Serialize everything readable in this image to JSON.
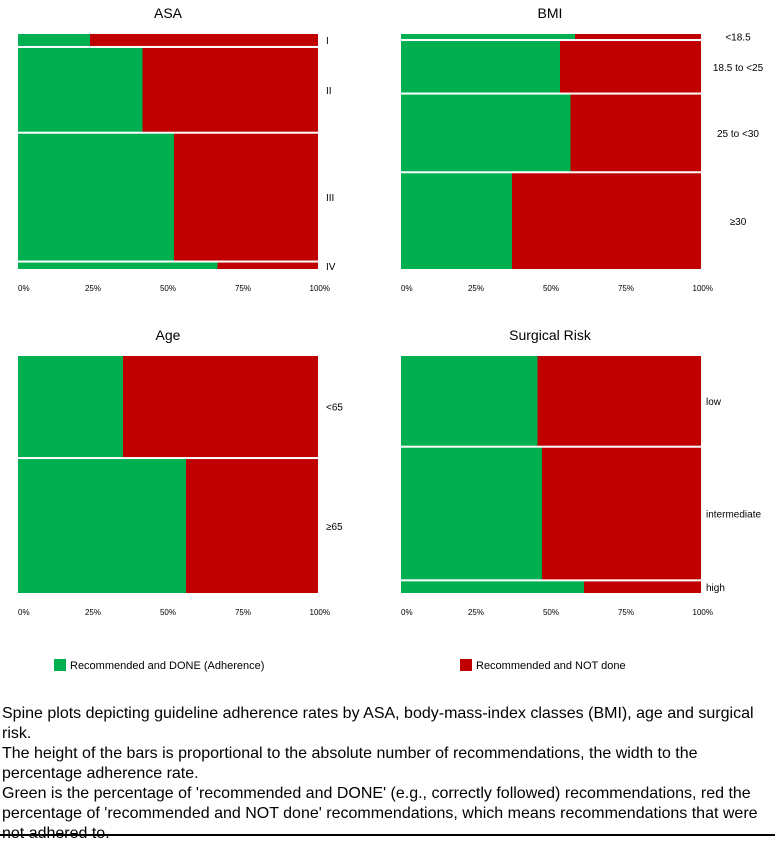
{
  "colors": {
    "done": "#00b050",
    "not_done": "#c00000",
    "separator": "#ffffff"
  },
  "ticks": [
    "0%",
    "25%",
    "50%",
    "75%",
    "100%"
  ],
  "chart_data": [
    {
      "type": "bar",
      "title": "ASA",
      "categories": [
        "I",
        "II",
        "III",
        "IV"
      ],
      "relative_counts": [
        0.05,
        0.35,
        0.53,
        0.027
      ],
      "series": [
        {
          "name": "Recommended and DONE (Adherence)",
          "values": [
            24,
            41.5,
            52,
            66.5
          ]
        },
        {
          "name": "Recommended and NOT done",
          "values": [
            76,
            58.5,
            48,
            33.5
          ]
        }
      ],
      "xlim": [
        0,
        100
      ]
    },
    {
      "type": "bar",
      "title": "BMI",
      "categories": [
        "<18.5",
        "18.5 to <25",
        "25 to <30",
        "≥30"
      ],
      "relative_counts": [
        0.022,
        0.225,
        0.335,
        0.418
      ],
      "series": [
        {
          "name": "Recommended and DONE (Adherence)",
          "values": [
            58,
            53,
            56.5,
            37
          ]
        },
        {
          "name": "Recommended and NOT done",
          "values": [
            42,
            47,
            43.5,
            63
          ]
        }
      ],
      "xlim": [
        0,
        100
      ]
    },
    {
      "type": "bar",
      "title": "Age",
      "categories": [
        "<65",
        "≥65"
      ],
      "relative_counts": [
        0.43,
        0.57
      ],
      "series": [
        {
          "name": "Recommended and DONE (Adherence)",
          "values": [
            35,
            56
          ]
        },
        {
          "name": "Recommended and NOT done",
          "values": [
            65,
            44
          ]
        }
      ],
      "xlim": [
        0,
        100
      ]
    },
    {
      "type": "bar",
      "title": "Surgical Risk",
      "categories": [
        "low",
        "intermediate",
        "high"
      ],
      "relative_counts": [
        0.385,
        0.565,
        0.05
      ],
      "series": [
        {
          "name": "Recommended and DONE (Adherence)",
          "values": [
            45.5,
            47,
            61
          ]
        },
        {
          "name": "Recommended and NOT done",
          "values": [
            54.5,
            53,
            39
          ]
        }
      ],
      "xlim": [
        0,
        100
      ]
    }
  ],
  "legend": {
    "done_label": "Recommended and DONE (Adherence)",
    "not_done_label": "Recommended and NOT done"
  },
  "caption": {
    "line1": "Spine plots depicting guideline adherence rates by ASA, body-mass-index classes (BMI), age and surgical risk.",
    "line2": "The height of the bars is proportional to the absolute number of recommendations, the width to the percentage adherence rate.",
    "line3": "Green is the percentage of 'recommended and DONE' (e.g., correctly followed) recommendations, red the percentage of 'recommended and NOT done' recommendations, which means recommendations that were not adhered to."
  }
}
